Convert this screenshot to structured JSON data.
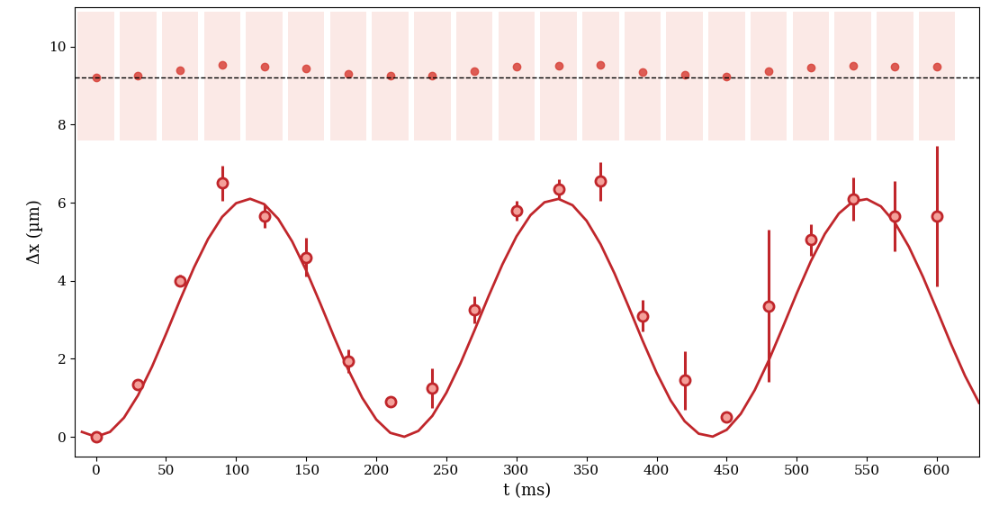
{
  "chart_data": {
    "type": "scatter",
    "x_label": "t (ms)",
    "y_label": "Δx (µm)",
    "xlim": [
      -15,
      630
    ],
    "xticks": [
      0,
      50,
      100,
      150,
      200,
      250,
      300,
      350,
      400,
      450,
      500,
      550,
      600
    ],
    "ylim": [
      -0.5,
      11
    ],
    "yticks": [
      0,
      2,
      4,
      6,
      8,
      10
    ],
    "grid": false,
    "series": [
      {
        "type": "scatter",
        "color": "#c0262b",
        "marker": "o",
        "x": [
          0,
          30,
          60,
          90,
          120,
          150,
          180,
          210,
          240,
          270,
          300,
          330,
          360,
          390,
          420,
          450,
          480,
          510,
          540,
          570,
          600
        ],
        "values": [
          0,
          1.35,
          4.0,
          6.5,
          5.65,
          4.6,
          1.95,
          0.9,
          1.25,
          3.25,
          5.8,
          6.35,
          6.55,
          3.1,
          1.45,
          0.5,
          3.35,
          5.05,
          6.1,
          5.65,
          5.65
        ],
        "errors": [
          0.05,
          0.1,
          0.15,
          0.45,
          0.3,
          0.5,
          0.3,
          0.1,
          0.5,
          0.35,
          0.25,
          0.25,
          0.5,
          0.4,
          0.75,
          0.05,
          1.95,
          0.4,
          0.55,
          0.9,
          1.8
        ]
      },
      {
        "type": "line",
        "color": "#c0262b",
        "line_style": "solid",
        "x": [
          -10,
          0,
          10,
          20,
          30,
          40,
          50,
          60,
          70,
          80,
          90,
          100,
          110,
          120,
          130,
          140,
          150,
          160,
          170,
          180,
          190,
          200,
          210,
          220,
          230,
          240,
          250,
          260,
          270,
          280,
          290,
          300,
          310,
          320,
          330,
          340,
          350,
          360,
          370,
          380,
          390,
          400,
          410,
          420,
          430,
          440,
          450,
          460,
          470,
          480,
          490,
          500,
          510,
          520,
          530,
          540,
          550,
          560,
          570,
          580,
          590,
          600,
          610,
          620,
          630
        ],
        "values": [
          0.125,
          0,
          0.125,
          0.489,
          1.062,
          1.797,
          2.636,
          3.508,
          4.342,
          5.071,
          5.635,
          5.987,
          6.1,
          5.963,
          5.588,
          5.005,
          4.263,
          3.421,
          2.549,
          1.719,
          0.997,
          0.443,
          0.101,
          0.001,
          0.15,
          0.537,
          1.128,
          1.877,
          2.722,
          3.593,
          4.42,
          5.135,
          5.68,
          6.01,
          6.097,
          5.936,
          5.538,
          4.936,
          4.183,
          3.335,
          2.464,
          1.641,
          0.933,
          0.398,
          0.08,
          0.005,
          0.179,
          0.587,
          1.197,
          1.958,
          2.808,
          3.679,
          4.498,
          5.199,
          5.723,
          6.03,
          6.092,
          5.906,
          5.487,
          4.868,
          4.101,
          3.248,
          2.379,
          1.564,
          0.871
        ]
      }
    ]
  }
}
